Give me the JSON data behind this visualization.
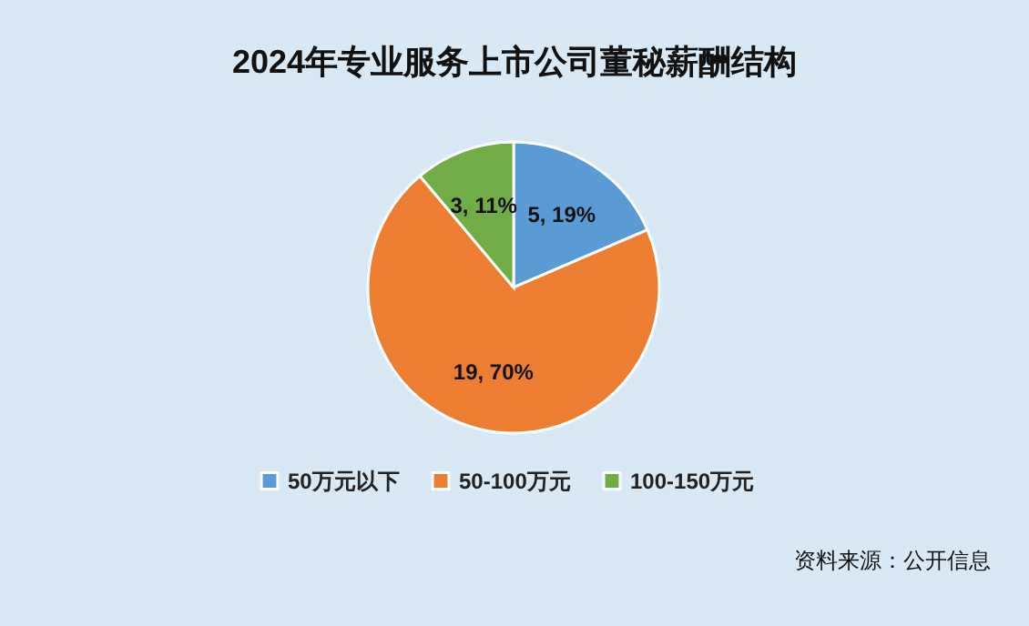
{
  "chart_data": {
    "type": "pie",
    "title": "2024年专业服务上市公司董秘薪酬结构",
    "categories": [
      "50万元以下",
      "50-100万元",
      "100-150万元"
    ],
    "values": [
      5,
      19,
      3
    ],
    "colors": [
      "#5b9bd5",
      "#ed7d31",
      "#70ad47"
    ],
    "value_labels": [
      "5, 19%",
      "19, 70%",
      "3, 11%"
    ],
    "legend": "bottom",
    "annotations": [
      "资料来源：公开信息"
    ]
  }
}
